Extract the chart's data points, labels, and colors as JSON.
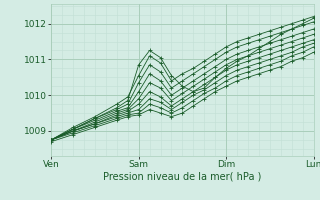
{
  "bg_color": "#d4ece4",
  "grid_color_major": "#aacebb",
  "grid_color_minor": "#c2dfd4",
  "line_color": "#1a5c2a",
  "marker_color": "#1a5c2a",
  "xlabel": "Pression niveau de la mer( hPa )",
  "xlabel_color": "#1a5c2a",
  "tick_color": "#1a5c2a",
  "ylim": [
    1008.3,
    1012.55
  ],
  "xlim": [
    0,
    72
  ],
  "yticks": [
    1009,
    1010,
    1011,
    1012
  ],
  "xticks": [
    0,
    24,
    48,
    72
  ],
  "xticklabels": [
    "Ven",
    "Sam",
    "Dim",
    "Lun"
  ],
  "series": [
    [
      0,
      1008.75,
      6,
      1009.05,
      12,
      1009.35,
      18,
      1009.65,
      21,
      1009.85,
      24,
      1010.85,
      27,
      1011.25,
      30,
      1011.05,
      33,
      1010.55,
      36,
      1010.25,
      39,
      1010.1,
      42,
      1010.2,
      45,
      1010.5,
      48,
      1010.75,
      51,
      1010.95,
      54,
      1011.1,
      57,
      1011.3,
      60,
      1011.5,
      63,
      1011.7,
      66,
      1011.85,
      69,
      1012.0,
      72,
      1012.15
    ],
    [
      0,
      1008.75,
      6,
      1009.1,
      12,
      1009.4,
      18,
      1009.75,
      21,
      1009.95,
      24,
      1010.55,
      27,
      1011.1,
      30,
      1010.9,
      33,
      1010.4,
      36,
      1010.6,
      39,
      1010.75,
      42,
      1010.95,
      45,
      1011.15,
      48,
      1011.35,
      51,
      1011.5,
      54,
      1011.6,
      57,
      1011.7,
      60,
      1011.8,
      63,
      1011.9,
      66,
      1012.0,
      69,
      1012.1,
      72,
      1012.2
    ],
    [
      0,
      1008.75,
      6,
      1009.05,
      12,
      1009.35,
      18,
      1009.6,
      21,
      1009.75,
      24,
      1010.35,
      27,
      1010.85,
      30,
      1010.65,
      33,
      1010.2,
      36,
      1010.4,
      39,
      1010.6,
      42,
      1010.8,
      45,
      1011.0,
      48,
      1011.2,
      51,
      1011.35,
      54,
      1011.45,
      57,
      1011.55,
      60,
      1011.65,
      63,
      1011.75,
      66,
      1011.85,
      69,
      1011.95,
      72,
      1012.05
    ],
    [
      0,
      1008.75,
      6,
      1009.05,
      12,
      1009.3,
      18,
      1009.55,
      21,
      1009.65,
      24,
      1010.1,
      27,
      1010.6,
      30,
      1010.4,
      33,
      1010.0,
      36,
      1010.2,
      39,
      1010.4,
      42,
      1010.6,
      45,
      1010.8,
      48,
      1011.0,
      51,
      1011.15,
      54,
      1011.25,
      57,
      1011.35,
      60,
      1011.45,
      63,
      1011.55,
      66,
      1011.65,
      69,
      1011.75,
      72,
      1011.85
    ],
    [
      0,
      1008.75,
      6,
      1009.0,
      12,
      1009.25,
      18,
      1009.5,
      21,
      1009.6,
      24,
      1009.9,
      27,
      1010.35,
      30,
      1010.2,
      33,
      1009.85,
      36,
      1010.05,
      39,
      1010.25,
      42,
      1010.45,
      45,
      1010.65,
      48,
      1010.85,
      51,
      1011.0,
      54,
      1011.1,
      57,
      1011.2,
      60,
      1011.3,
      63,
      1011.4,
      66,
      1011.5,
      69,
      1011.6,
      72,
      1011.7
    ],
    [
      0,
      1008.75,
      6,
      1009.0,
      12,
      1009.2,
      18,
      1009.45,
      21,
      1009.55,
      24,
      1009.75,
      27,
      1010.1,
      30,
      1009.95,
      33,
      1009.7,
      36,
      1009.9,
      39,
      1010.1,
      42,
      1010.3,
      45,
      1010.5,
      48,
      1010.7,
      51,
      1010.85,
      54,
      1010.95,
      57,
      1011.05,
      60,
      1011.15,
      63,
      1011.25,
      66,
      1011.35,
      69,
      1011.45,
      72,
      1011.55
    ],
    [
      0,
      1008.75,
      6,
      1009.0,
      12,
      1009.2,
      18,
      1009.4,
      21,
      1009.5,
      24,
      1009.6,
      27,
      1009.9,
      30,
      1009.8,
      33,
      1009.6,
      36,
      1009.8,
      39,
      1010.0,
      42,
      1010.15,
      45,
      1010.35,
      48,
      1010.55,
      51,
      1010.7,
      54,
      1010.8,
      57,
      1010.9,
      60,
      1011.0,
      63,
      1011.1,
      66,
      1011.2,
      69,
      1011.35,
      72,
      1011.45
    ],
    [
      0,
      1008.75,
      6,
      1008.95,
      12,
      1009.15,
      18,
      1009.35,
      21,
      1009.45,
      24,
      1009.5,
      27,
      1009.75,
      30,
      1009.65,
      33,
      1009.5,
      36,
      1009.65,
      39,
      1009.85,
      42,
      1010.05,
      45,
      1010.2,
      48,
      1010.4,
      51,
      1010.55,
      54,
      1010.65,
      57,
      1010.75,
      60,
      1010.85,
      63,
      1010.95,
      66,
      1011.1,
      69,
      1011.2,
      72,
      1011.35
    ],
    [
      0,
      1008.7,
      6,
      1008.9,
      12,
      1009.1,
      18,
      1009.3,
      21,
      1009.4,
      24,
      1009.45,
      27,
      1009.6,
      30,
      1009.5,
      33,
      1009.4,
      36,
      1009.5,
      39,
      1009.7,
      42,
      1009.9,
      45,
      1010.1,
      48,
      1010.25,
      51,
      1010.4,
      54,
      1010.5,
      57,
      1010.6,
      60,
      1010.7,
      63,
      1010.8,
      66,
      1010.95,
      69,
      1011.05,
      72,
      1011.2
    ]
  ]
}
